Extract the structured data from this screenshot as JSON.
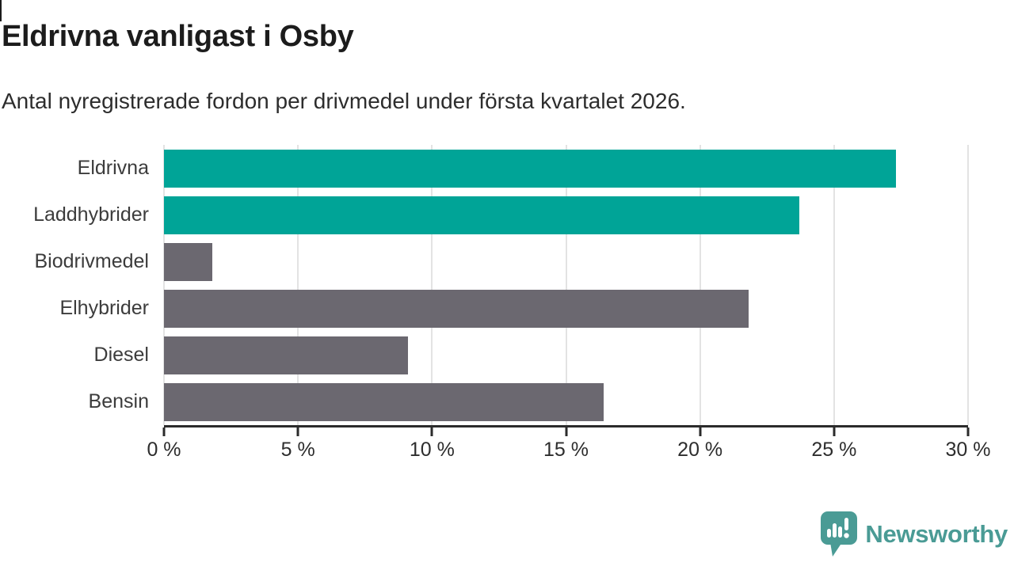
{
  "header": {
    "title": "Eldrivna vanligast i Osby",
    "subtitle": "Antal nyregistrerade fordon per drivmedel under första kvartalet 2026."
  },
  "chart_data": {
    "type": "bar",
    "orientation": "horizontal",
    "title": "Eldrivna vanligast i Osby",
    "subtitle": "Antal nyregistrerade fordon per drivmedel under första kvartalet 2026.",
    "categories": [
      "Eldrivna",
      "Laddhybrider",
      "Biodrivmedel",
      "Elhybrider",
      "Diesel",
      "Bensin"
    ],
    "values": [
      27.3,
      23.7,
      1.8,
      21.8,
      9.1,
      16.4
    ],
    "unit": "%",
    "xlabel": "",
    "ylabel": "",
    "xlim": [
      0,
      30
    ],
    "x_ticks": [
      0,
      5,
      10,
      15,
      20,
      25,
      30
    ],
    "x_tick_labels": [
      "0 %",
      "5 %",
      "10 %",
      "15 %",
      "20 %",
      "25 %",
      "30 %"
    ],
    "bar_colors": [
      "#00a497",
      "#00a497",
      "#6b6870",
      "#6b6870",
      "#6b6870",
      "#6b6870"
    ],
    "highlight_color": "#00a497",
    "default_color": "#6b6870",
    "grid": true,
    "gridline_color": "#e3e3e3",
    "axis_color": "#2b2b2b",
    "legend": "none"
  },
  "footer": {
    "brand": "Newsworthy",
    "brand_color": "#4a9b95",
    "logo_icon": "newsworthy-speech-bubble-barchart-icon"
  }
}
